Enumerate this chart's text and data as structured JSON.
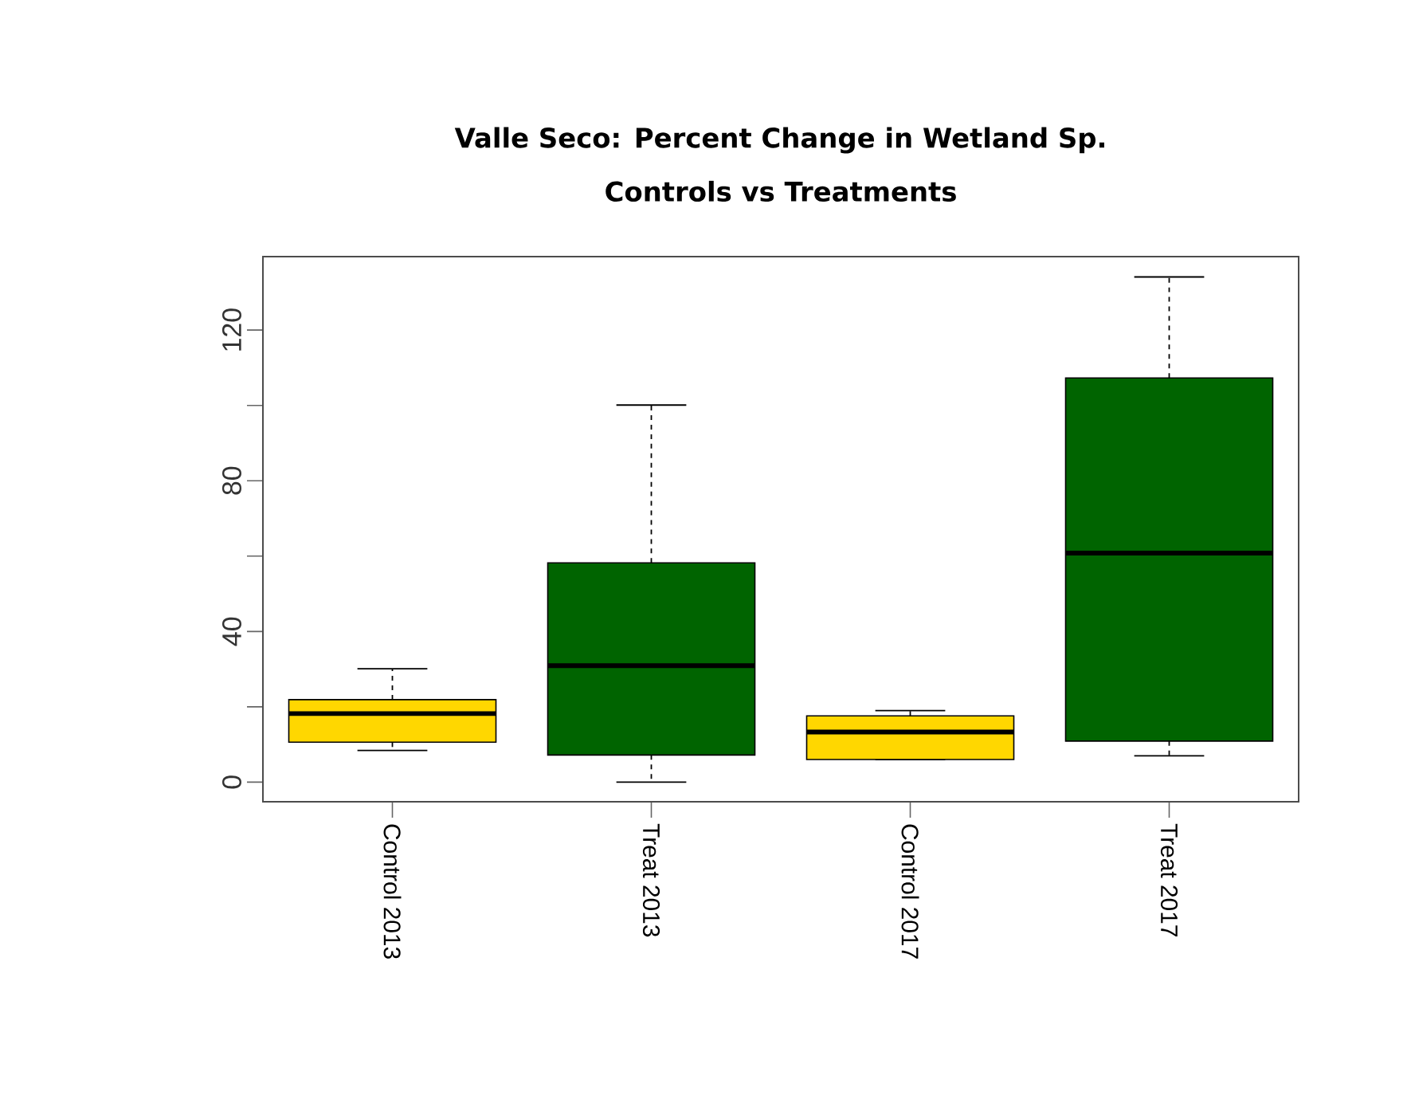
{
  "chart_data": {
    "type": "box",
    "title": "Valle Seco: Percent Change in Wetland Sp.",
    "subtitle": "Controls vs Treatments",
    "categories": [
      "Control 2013",
      "Treat 2013",
      "Control 2017",
      "Treat 2017"
    ],
    "colors": [
      "#ffd700",
      "#006400",
      "#ffd700",
      "#006400"
    ],
    "boxes": [
      {
        "low": 8.4,
        "q1": 10.6,
        "median": 18.2,
        "q3": 21.9,
        "high": 30.1
      },
      {
        "low": 0,
        "q1": 7.2,
        "median": 30.9,
        "q3": 58.2,
        "high": 100.1
      },
      {
        "low": 6,
        "q1": 6,
        "median": 13.3,
        "q3": 17.6,
        "high": 19
      },
      {
        "low": 7,
        "q1": 10.9,
        "median": 60.8,
        "q3": 107.3,
        "high": 134.1
      }
    ],
    "ylim": [
      -5.2,
      139.5
    ],
    "yticks": [
      0,
      {
        "value": 20,
        "label": null
      },
      40,
      {
        "value": 60,
        "label": null
      },
      80,
      {
        "value": 100,
        "label": null
      },
      120
    ],
    "grid": false
  }
}
